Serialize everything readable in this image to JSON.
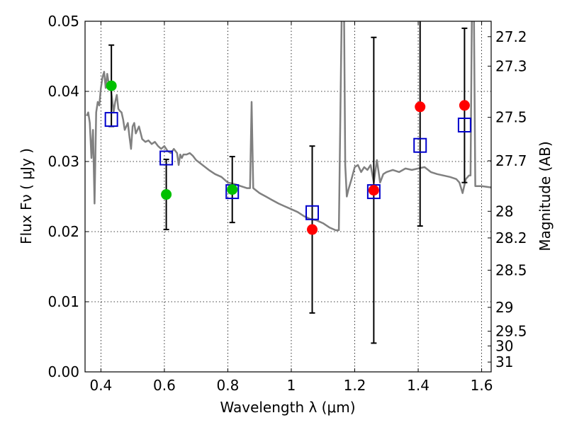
{
  "chart_data": {
    "type": "scatter",
    "title": "",
    "xlabel": "Wavelength  λ (μm)",
    "ylabel": "Flux  Fν  ( μJy )",
    "y2label": "Magnitude (AB)",
    "xlim": [
      0.35,
      1.63
    ],
    "ylim": [
      0.0,
      0.05
    ],
    "grid": true,
    "x_ticks": [
      {
        "value": 0.4,
        "label": "0.4"
      },
      {
        "value": 0.6,
        "label": "0.6"
      },
      {
        "value": 0.8,
        "label": "0.8"
      },
      {
        "value": 1.0,
        "label": "1"
      },
      {
        "value": 1.2,
        "label": "1.2"
      },
      {
        "value": 1.4,
        "label": "1.4"
      },
      {
        "value": 1.6,
        "label": "1.6"
      }
    ],
    "y_ticks": [
      {
        "value": 0.0,
        "label": "0.00"
      },
      {
        "value": 0.01,
        "label": "0.01"
      },
      {
        "value": 0.02,
        "label": "0.02"
      },
      {
        "value": 0.03,
        "label": "0.03"
      },
      {
        "value": 0.04,
        "label": "0.04"
      },
      {
        "value": 0.05,
        "label": "0.05"
      }
    ],
    "y2_ticks": [
      {
        "flux": 0.0478,
        "label": "27.2"
      },
      {
        "flux": 0.0436,
        "label": "27.3"
      },
      {
        "flux": 0.0363,
        "label": "27.5"
      },
      {
        "flux": 0.0301,
        "label": "27.7"
      },
      {
        "flux": 0.0229,
        "label": "28"
      },
      {
        "flux": 0.0191,
        "label": "28.2"
      },
      {
        "flux": 0.0145,
        "label": "28.5"
      },
      {
        "flux": 0.0092,
        "label": "29"
      },
      {
        "flux": 0.0058,
        "label": "29.5"
      },
      {
        "flux": 0.0037,
        "label": "30"
      },
      {
        "flux": 0.0014,
        "label": "31"
      }
    ],
    "series": [
      {
        "name": "model spectrum",
        "kind": "line",
        "color": "#808080",
        "x": [
          0.355,
          0.36,
          0.365,
          0.37,
          0.375,
          0.38,
          0.385,
          0.39,
          0.395,
          0.4,
          0.405,
          0.41,
          0.415,
          0.42,
          0.425,
          0.43,
          0.435,
          0.44,
          0.445,
          0.45,
          0.455,
          0.46,
          0.465,
          0.47,
          0.475,
          0.48,
          0.485,
          0.49,
          0.495,
          0.5,
          0.505,
          0.51,
          0.515,
          0.52,
          0.53,
          0.54,
          0.55,
          0.56,
          0.57,
          0.58,
          0.585,
          0.59,
          0.6,
          0.61,
          0.62,
          0.63,
          0.64,
          0.645,
          0.65,
          0.655,
          0.66,
          0.67,
          0.68,
          0.69,
          0.7,
          0.72,
          0.74,
          0.76,
          0.78,
          0.8,
          0.82,
          0.84,
          0.86,
          0.87,
          0.875,
          0.88,
          0.9,
          0.92,
          0.94,
          0.96,
          0.98,
          1.0,
          1.02,
          1.04,
          1.06,
          1.08,
          1.1,
          1.12,
          1.14,
          1.15,
          1.16,
          1.163,
          1.166,
          1.17,
          1.175,
          1.18,
          1.19,
          1.2,
          1.21,
          1.22,
          1.23,
          1.24,
          1.25,
          1.26,
          1.27,
          1.28,
          1.29,
          1.3,
          1.32,
          1.34,
          1.36,
          1.38,
          1.4,
          1.42,
          1.44,
          1.46,
          1.48,
          1.5,
          1.52,
          1.53,
          1.54,
          1.55,
          1.56,
          1.565,
          1.57,
          1.575,
          1.58,
          1.6,
          1.63
        ],
        "y": [
          0.0365,
          0.037,
          0.0355,
          0.0305,
          0.0345,
          0.024,
          0.037,
          0.0385,
          0.038,
          0.0405,
          0.042,
          0.0428,
          0.0405,
          0.0425,
          0.041,
          0.0408,
          0.039,
          0.037,
          0.0385,
          0.0395,
          0.0375,
          0.0372,
          0.037,
          0.036,
          0.0345,
          0.035,
          0.0355,
          0.0335,
          0.0318,
          0.035,
          0.0355,
          0.034,
          0.0345,
          0.035,
          0.0332,
          0.0328,
          0.033,
          0.0325,
          0.0328,
          0.0322,
          0.032,
          0.0318,
          0.0322,
          0.0315,
          0.0312,
          0.0318,
          0.0312,
          0.0295,
          0.031,
          0.0305,
          0.031,
          0.031,
          0.0312,
          0.0308,
          0.0302,
          0.0295,
          0.0288,
          0.0282,
          0.0278,
          0.027,
          0.0268,
          0.0265,
          0.0262,
          0.0262,
          0.0385,
          0.0262,
          0.0255,
          0.025,
          0.0245,
          0.024,
          0.0236,
          0.0232,
          0.0228,
          0.0222,
          0.0218,
          0.0216,
          0.0212,
          0.0206,
          0.0202,
          0.0202,
          0.055,
          0.058,
          0.053,
          0.0295,
          0.025,
          0.026,
          0.0275,
          0.0292,
          0.0295,
          0.0285,
          0.0292,
          0.0288,
          0.0295,
          0.027,
          0.0302,
          0.027,
          0.0282,
          0.0285,
          0.0288,
          0.0285,
          0.029,
          0.0288,
          0.029,
          0.0292,
          0.0285,
          0.0282,
          0.028,
          0.0278,
          0.0275,
          0.027,
          0.0255,
          0.0275,
          0.028,
          0.028,
          0.055,
          0.055,
          0.0265,
          0.0265,
          0.0263
        ]
      },
      {
        "name": "observed (green)",
        "kind": "points",
        "color": "#00c000",
        "x": [
          0.433,
          0.606,
          0.814
        ],
        "y": [
          0.0408,
          0.0253,
          0.026
        ],
        "err_low": [
          0.0058,
          0.005,
          0.0047
        ],
        "err_high": [
          0.0058,
          0.005,
          0.0047
        ]
      },
      {
        "name": "observed (red)",
        "kind": "points",
        "color": "#ff0000",
        "x": [
          1.066,
          1.26,
          1.406,
          1.546
        ],
        "y": [
          0.0203,
          0.0259,
          0.0378,
          0.038
        ],
        "err_low": [
          0.0119,
          0.0218,
          0.017,
          0.011
        ],
        "err_high": [
          0.0119,
          0.0218,
          0.017,
          0.011
        ]
      },
      {
        "name": "model photometry",
        "kind": "open-squares",
        "color": "#0000cc",
        "x": [
          0.433,
          0.606,
          0.814,
          1.066,
          1.26,
          1.406,
          1.546
        ],
        "y": [
          0.036,
          0.0305,
          0.0257,
          0.0227,
          0.0257,
          0.0323,
          0.0352
        ]
      }
    ]
  }
}
